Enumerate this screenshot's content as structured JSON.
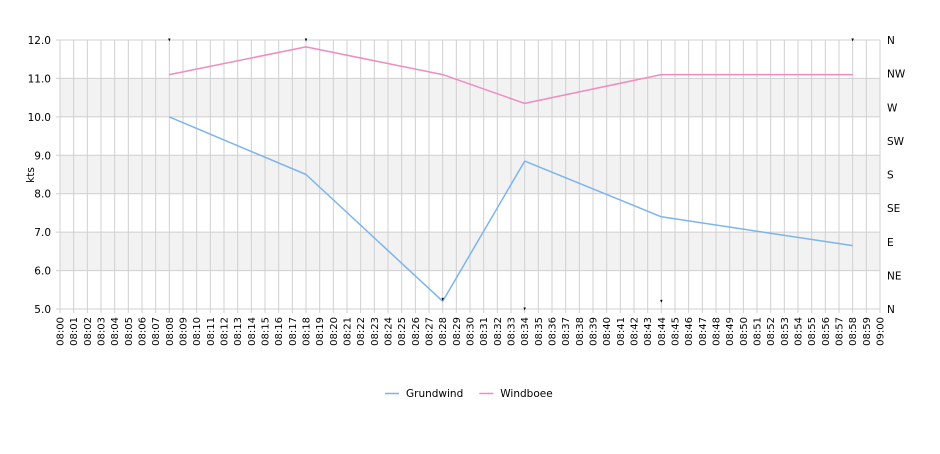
{
  "chart_data": {
    "type": "line",
    "ylabel": "kts",
    "ylim": [
      5.0,
      12.0
    ],
    "y_ticks": [
      "5.0",
      "6.0",
      "7.0",
      "8.0",
      "9.0",
      "10.0",
      "11.0",
      "12.0"
    ],
    "right_axis_labels": [
      "N",
      "NE",
      "E",
      "SE",
      "S",
      "SW",
      "W",
      "NW",
      "N"
    ],
    "x_ticks": [
      "08:00",
      "08:01",
      "08:02",
      "08:03",
      "08:04",
      "08:05",
      "08:06",
      "08:07",
      "08:08",
      "08:09",
      "08:10",
      "08:11",
      "08:12",
      "08:13",
      "08:14",
      "08:15",
      "08:16",
      "08:17",
      "08:18",
      "08:19",
      "08:20",
      "08:21",
      "08:22",
      "08:23",
      "08:24",
      "08:25",
      "08:26",
      "08:27",
      "08:28",
      "08:29",
      "08:30",
      "08:31",
      "08:32",
      "08:33",
      "08:34",
      "08:35",
      "08:36",
      "08:37",
      "08:38",
      "08:39",
      "08:40",
      "08:41",
      "08:42",
      "08:43",
      "08:44",
      "08:45",
      "08:46",
      "08:47",
      "08:48",
      "08:49",
      "08:50",
      "08:51",
      "08:52",
      "08:53",
      "08:54",
      "08:55",
      "08:56",
      "08:57",
      "08:58",
      "08:59",
      "09:00"
    ],
    "grid": true,
    "legend_position": "bottom",
    "series": [
      {
        "name": "Grundwind",
        "color": "#7cb5ec",
        "points": [
          [
            8,
            10.0
          ],
          [
            18,
            8.5
          ],
          [
            28,
            5.2
          ],
          [
            34,
            8.85
          ],
          [
            44,
            7.4
          ],
          [
            58,
            6.65
          ]
        ]
      },
      {
        "name": "Windboee",
        "color": "#f08cc0",
        "points": [
          [
            8,
            11.1
          ],
          [
            18,
            11.82
          ],
          [
            28,
            11.1
          ],
          [
            34,
            10.35
          ],
          [
            44,
            11.1
          ],
          [
            58,
            11.1
          ]
        ]
      }
    ],
    "direction_markers": [
      [
        8,
        12.0
      ],
      [
        18,
        12.0
      ],
      [
        28,
        5.25
      ],
      [
        34,
        5.0
      ],
      [
        44,
        5.2
      ],
      [
        58,
        12.0
      ]
    ]
  }
}
